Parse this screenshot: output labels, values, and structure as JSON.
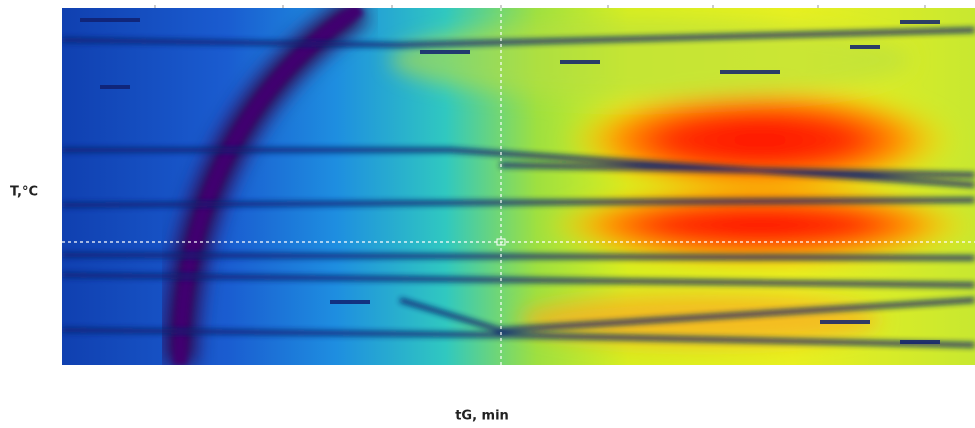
{
  "chart_data": {
    "type": "heatmap",
    "x_label": "tG, min",
    "y_label": "T,°C"
  }
}
